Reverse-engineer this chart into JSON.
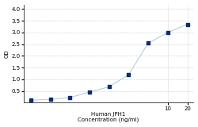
{
  "x": [
    0.078,
    0.156,
    0.3125,
    0.625,
    1.25,
    2.5,
    5,
    10,
    20
  ],
  "y": [
    0.105,
    0.145,
    0.22,
    0.46,
    0.68,
    1.2,
    2.55,
    3.0,
    3.35
  ],
  "line_color": "#b0d0e8",
  "marker_color": "#0d2b6e",
  "marker_size": 3.5,
  "xlabel_line1": "Human JPH1",
  "xlabel_line2": "Concentration (ng/ml)",
  "ylabel": "OD",
  "xlim_log": [
    0.06,
    25
  ],
  "ylim": [
    0,
    4.2
  ],
  "xticks": [
    10,
    20
  ],
  "yticks": [
    0.5,
    1.0,
    1.5,
    2.0,
    2.5,
    3.0,
    3.5,
    4.0
  ],
  "grid_color": "#cccccc",
  "bg_color": "#ffffff",
  "font_size_label": 5,
  "font_size_tick": 5
}
